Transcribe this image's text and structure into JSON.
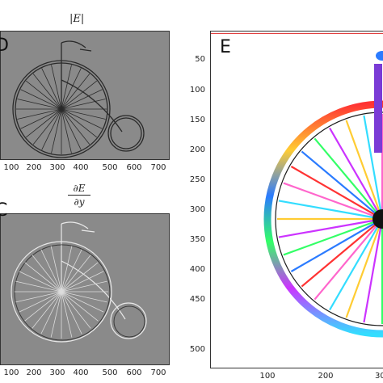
{
  "panels": {
    "D": {
      "label": "D",
      "title": "|E|",
      "x_ticks": [
        "100",
        "200",
        "300",
        "400",
        "500",
        "600",
        "700"
      ]
    },
    "C": {
      "label": "C",
      "title_num": "∂E",
      "title_den": "∂y",
      "x_ticks": [
        "100",
        "200",
        "300",
        "400",
        "500",
        "600",
        "700"
      ]
    },
    "E": {
      "label": "E",
      "y_ticks": [
        "50",
        "100",
        "150",
        "200",
        "250",
        "300",
        "350",
        "400",
        "450",
        "500"
      ],
      "x_ticks": [
        "100",
        "200",
        "30"
      ]
    }
  },
  "colors": {
    "gray_background": "#8a8a8a",
    "rim_gradient": [
      "#2b7bff",
      "#33ff66",
      "#ffee33",
      "#ff3333",
      "#cc33ff",
      "#33ddff"
    ]
  }
}
